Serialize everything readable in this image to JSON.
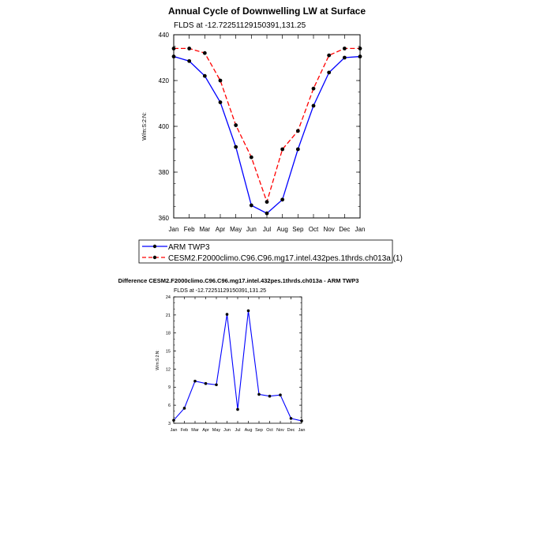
{
  "chart_data": [
    {
      "type": "line",
      "title": "Annual Cycle of Downwelling LW at Surface",
      "subtitle": "FLDS at -12.72251129150391,131.25",
      "xlabel": "",
      "ylabel": "W/m:S:2:N:",
      "categories": [
        "Jan",
        "Feb",
        "Mar",
        "Apr",
        "May",
        "Jun",
        "Jul",
        "Aug",
        "Sep",
        "Oct",
        "Nov",
        "Dec",
        "Jan"
      ],
      "ylim": [
        360,
        440
      ],
      "yticks": [
        "360",
        "380",
        "400",
        "420",
        "440"
      ],
      "series": [
        {
          "name": "ARM TWP3",
          "color": "#0000ff",
          "dash": "solid",
          "values": [
            430.5,
            428.5,
            422,
            410.5,
            391,
            365.5,
            362,
            368,
            390,
            409,
            423.5,
            430,
            430.5
          ]
        },
        {
          "name": "CESM2.F2000climo.C96.C96.mg17.intel.432pes.1thrds.ch013a (1)",
          "color": "#ff0000",
          "dash": "dashed",
          "values": [
            434,
            434,
            432,
            420,
            400.5,
            386.5,
            367,
            390,
            398,
            416.5,
            431,
            434,
            434
          ]
        }
      ]
    },
    {
      "type": "line",
      "title": "Difference CESM2.F2000climo.C96.C96.mg17.intel.432pes.1thrds.ch013a - ARM TWP3",
      "subtitle": "FLDS at -12.72251129150391,131.25",
      "xlabel": "",
      "ylabel": "W/m:S:2:N:",
      "categories": [
        "Jan",
        "Feb",
        "Mar",
        "Apr",
        "May",
        "Jun",
        "Jul",
        "Aug",
        "Sep",
        "Oct",
        "Nov",
        "Dec",
        "Jan"
      ],
      "ylim": [
        3,
        24
      ],
      "yticks": [
        "3",
        "6",
        "9",
        "12",
        "15",
        "18",
        "21",
        "24"
      ],
      "series": [
        {
          "name": "Difference",
          "color": "#0000ff",
          "dash": "solid",
          "values": [
            3.5,
            5.5,
            10,
            9.6,
            9.4,
            21.1,
            5.3,
            21.7,
            7.8,
            7.5,
            7.7,
            3.8,
            3.4
          ]
        }
      ]
    }
  ]
}
